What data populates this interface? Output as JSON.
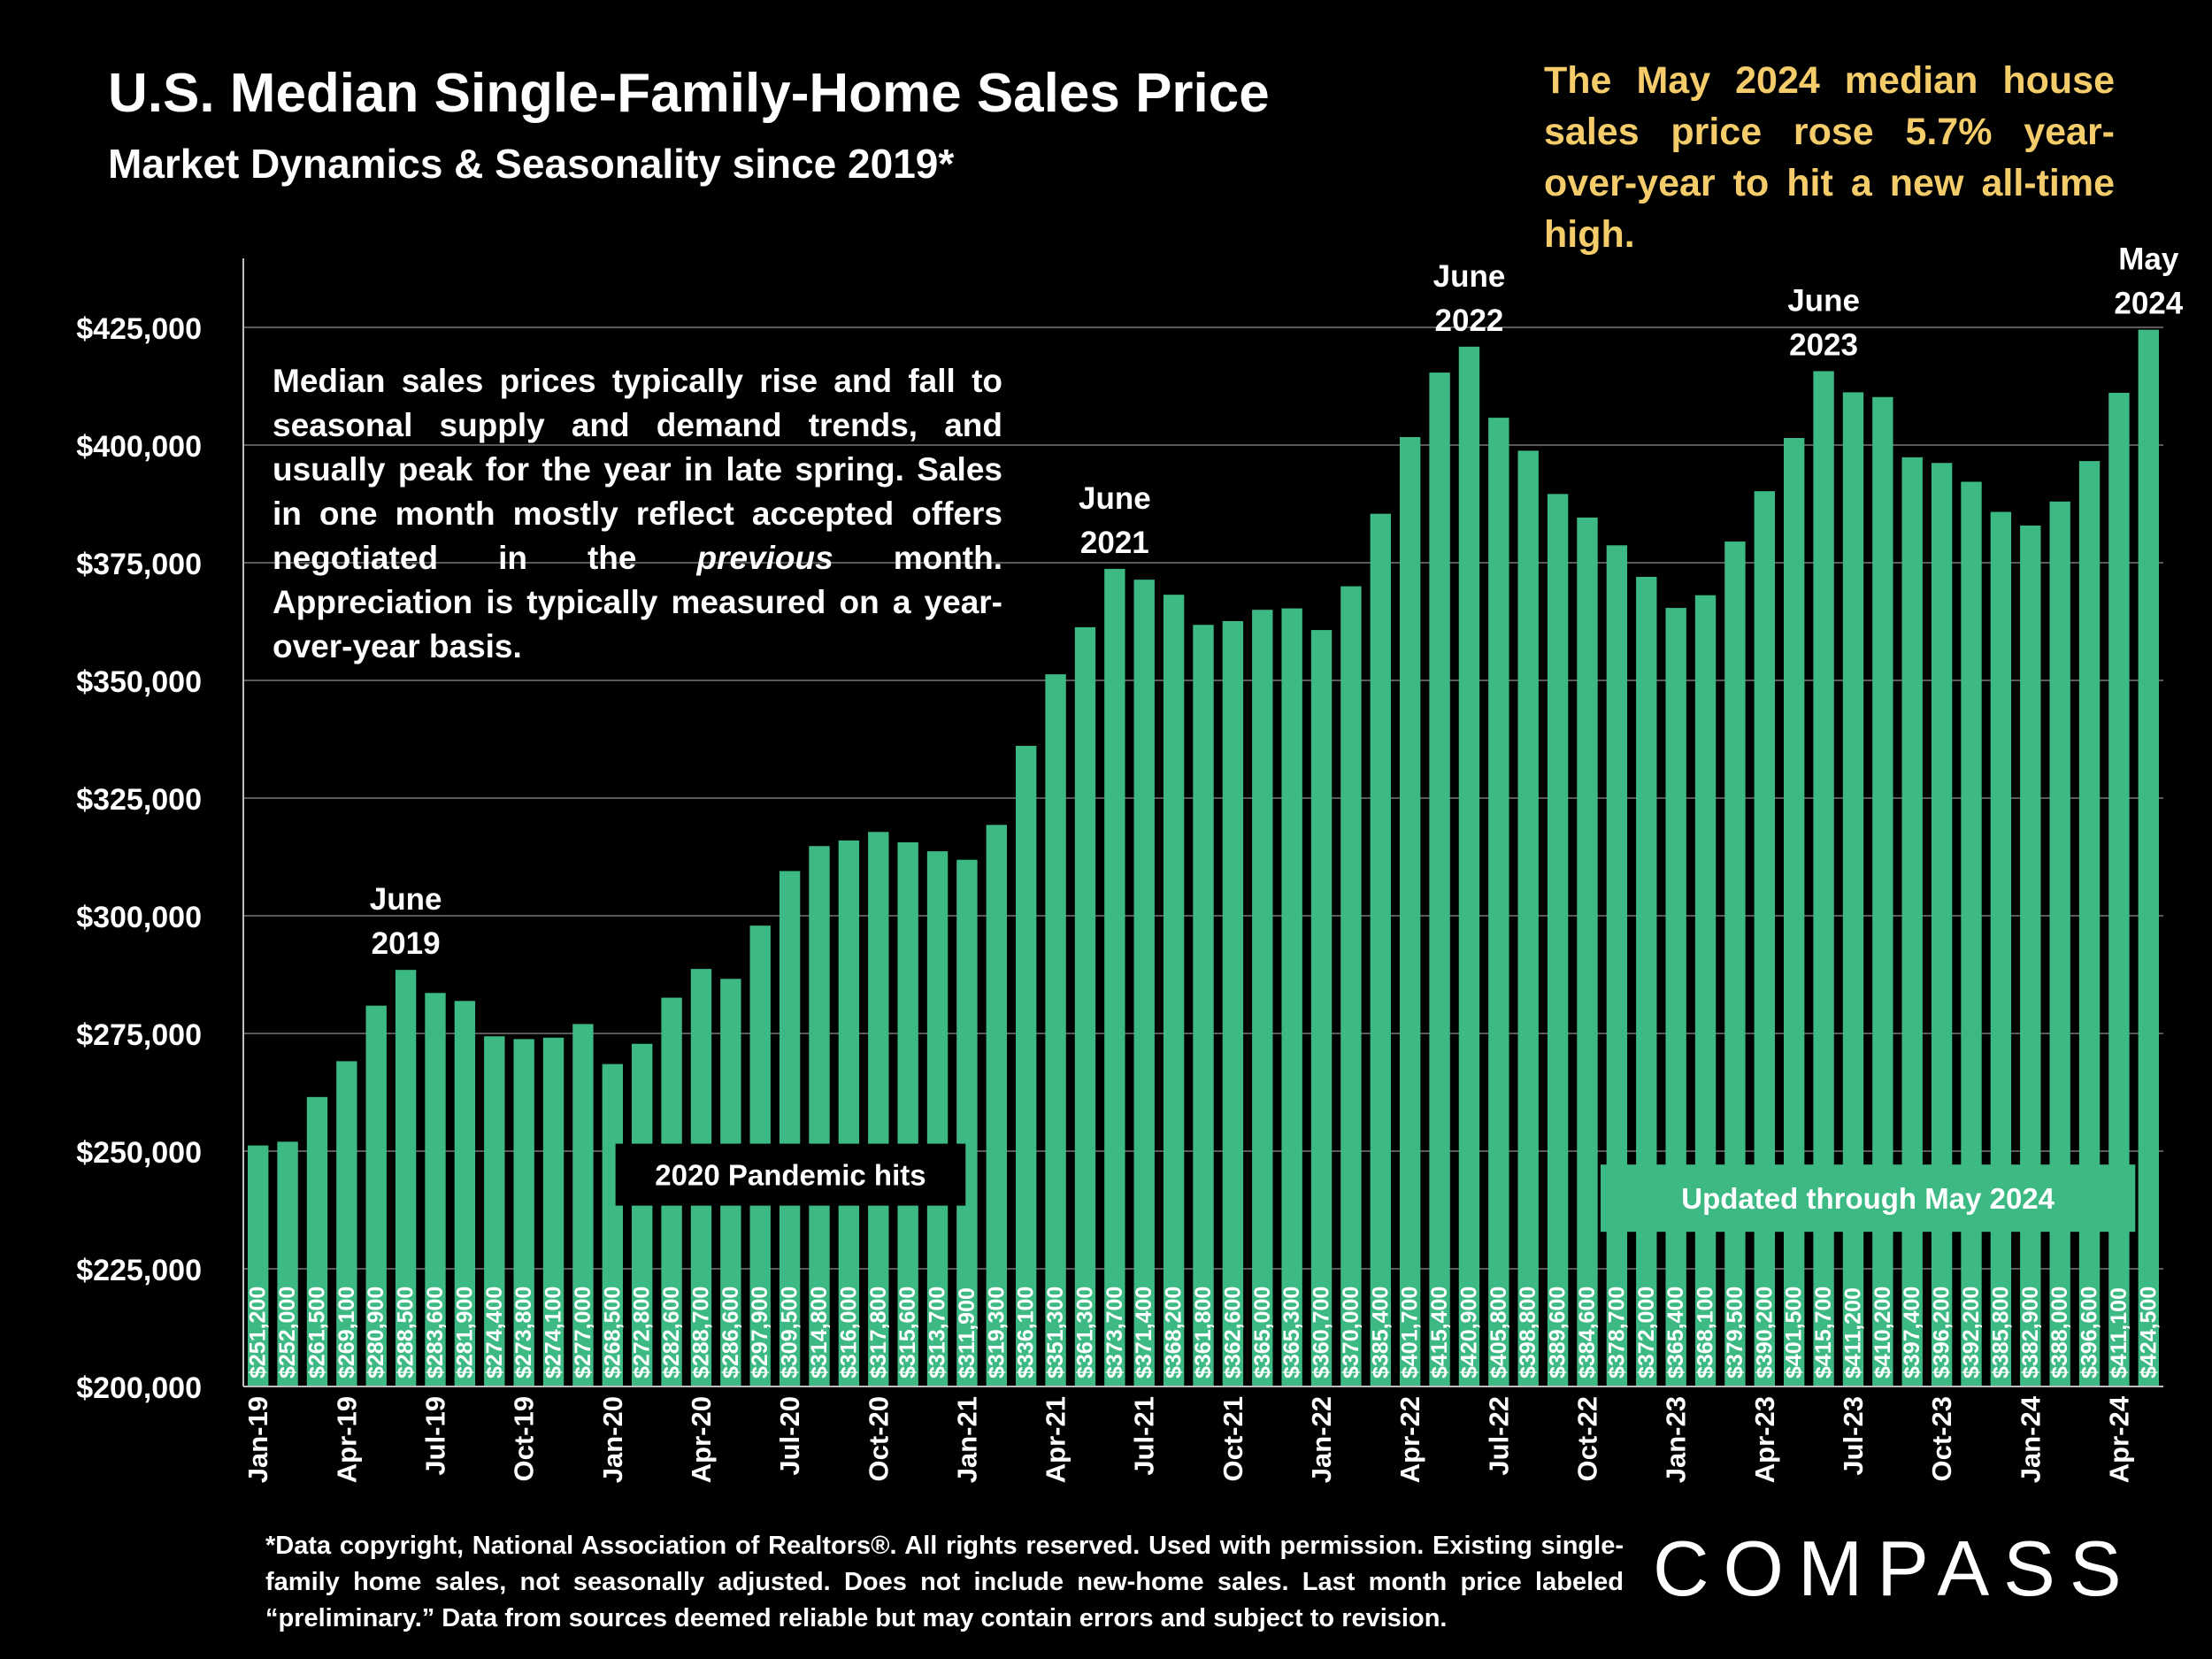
{
  "header": {
    "title": "U.S. Median Single-Family-Home Sales Price",
    "subtitle": "Market Dynamics & Seasonality since 2019*",
    "callout": "The May 2024 median house sales price rose 5.7% year-over-year to hit a new all-time high."
  },
  "note": {
    "before": "Median sales prices typically rise and fall to seasonal supply and demand trends, and usually peak for the year in late spring. Sales in one month mostly reflect accepted offers negotiated in the ",
    "emphasis": "previous",
    "after": " month. Appreciation is typically measured on a year-over-year basis."
  },
  "footnote": "*Data copyright, National Association of Realtors®. All rights reserved. Used with permission. Existing single-family home sales, not seasonally adjusted. Does not include new-home sales. Last month price labeled “preliminary.” Data from sources deemed reliable but may contain errors and subject to revision.",
  "logo": "COMPASS",
  "chart_data": {
    "type": "bar",
    "title": "U.S. Median Single-Family-Home Sales Price",
    "subtitle": "Market Dynamics & Seasonality since 2019*",
    "bar_color": "#3dba83",
    "ylim": [
      200000,
      425000
    ],
    "y_ticks": [
      "$200,000",
      "$225,000",
      "$250,000",
      "$275,000",
      "$300,000",
      "$325,000",
      "$350,000",
      "$375,000",
      "$400,000",
      "$425,000"
    ],
    "x_tick_labels": [
      "Jan-19",
      "Apr-19",
      "Jul-19",
      "Oct-19",
      "Jan-20",
      "Apr-20",
      "Jul-20",
      "Oct-20",
      "Jan-21",
      "Apr-21",
      "Jul-21",
      "Oct-21",
      "Jan-22",
      "Apr-22",
      "Jul-22",
      "Oct-22",
      "Jan-23",
      "Apr-23",
      "Jul-23",
      "Oct-23",
      "Jan-24",
      "Apr-24"
    ],
    "categories": [
      "Jan-19",
      "Feb-19",
      "Mar-19",
      "Apr-19",
      "May-19",
      "Jun-19",
      "Jul-19",
      "Aug-19",
      "Sep-19",
      "Oct-19",
      "Nov-19",
      "Dec-19",
      "Jan-20",
      "Feb-20",
      "Mar-20",
      "Apr-20",
      "May-20",
      "Jun-20",
      "Jul-20",
      "Aug-20",
      "Sep-20",
      "Oct-20",
      "Nov-20",
      "Dec-20",
      "Jan-21",
      "Feb-21",
      "Mar-21",
      "Apr-21",
      "May-21",
      "Jun-21",
      "Jul-21",
      "Aug-21",
      "Sep-21",
      "Oct-21",
      "Nov-21",
      "Dec-21",
      "Jan-22",
      "Feb-22",
      "Mar-22",
      "Apr-22",
      "May-22",
      "Jun-22",
      "Jul-22",
      "Aug-22",
      "Sep-22",
      "Oct-22",
      "Nov-22",
      "Dec-22",
      "Jan-23",
      "Feb-23",
      "Mar-23",
      "Apr-23",
      "May-23",
      "Jun-23",
      "Jul-23",
      "Aug-23",
      "Sep-23",
      "Oct-23",
      "Nov-23",
      "Dec-23",
      "Jan-24",
      "Feb-24",
      "Mar-24",
      "Apr-24",
      "May-24"
    ],
    "values": [
      251200,
      252000,
      261500,
      269100,
      280900,
      288500,
      283600,
      281900,
      274400,
      273800,
      274100,
      277000,
      268500,
      272800,
      282600,
      288700,
      286600,
      297900,
      309500,
      314800,
      316000,
      317800,
      315600,
      313700,
      311900,
      319300,
      336100,
      351300,
      361300,
      373700,
      371400,
      368200,
      361800,
      362600,
      365000,
      365300,
      360700,
      370000,
      385400,
      401700,
      415400,
      420900,
      405800,
      398800,
      389600,
      384600,
      378700,
      372000,
      365400,
      368100,
      379500,
      390200,
      401500,
      415700,
      411200,
      410200,
      397400,
      396200,
      392200,
      385800,
      382900,
      388000,
      396600,
      411100,
      424500
    ],
    "value_labels": [
      "$251,200",
      "$252,000",
      "$261,500",
      "$269,100",
      "$280,900",
      "$288,500",
      "$283,600",
      "$281,900",
      "$274,400",
      "$273,800",
      "$274,100",
      "$277,000",
      "$268,500",
      "$272,800",
      "$282,600",
      "$288,700",
      "$286,600",
      "$297,900",
      "$309,500",
      "$314,800",
      "$316,000",
      "$317,800",
      "$315,600",
      "$313,700",
      "$311,900",
      "$319,300",
      "$336,100",
      "$351,300",
      "$361,300",
      "$373,700",
      "$371,400",
      "$368,200",
      "$361,800",
      "$362,600",
      "$365,000",
      "$365,300",
      "$360,700",
      "$370,000",
      "$385,400",
      "$401,700",
      "$415,400",
      "$420,900",
      "$405,800",
      "$398,800",
      "$389,600",
      "$384,600",
      "$378,700",
      "$372,000",
      "$365,400",
      "$368,100",
      "$379,500",
      "$390,200",
      "$401,500",
      "$415,700",
      "$411,200",
      "$410,200",
      "$397,400",
      "$396,200",
      "$392,200",
      "$385,800",
      "$382,900",
      "$388,000",
      "$396,600",
      "$411,100",
      "$424,500"
    ],
    "peak_annotations": [
      {
        "month": "Jun-19",
        "lines": [
          "June",
          "2019"
        ]
      },
      {
        "month": "Jun-21",
        "lines": [
          "June",
          "2021"
        ]
      },
      {
        "month": "Jun-22",
        "lines": [
          "June",
          "2022"
        ]
      },
      {
        "month": "Jun-23",
        "lines": [
          "June",
          "2023"
        ]
      },
      {
        "month": "May-24",
        "lines": [
          "May",
          "2024"
        ]
      }
    ],
    "box_annotations": [
      {
        "text": "2020 Pandemic hits",
        "from_month": "Jan-20",
        "to_month": "Jan-21",
        "level": 245000,
        "style": "dark"
      },
      {
        "text": "Updated through May 2024",
        "from_month": "Nov-22",
        "to_month": "Apr-24",
        "level": 240000,
        "style": "green"
      }
    ],
    "grid": true
  }
}
